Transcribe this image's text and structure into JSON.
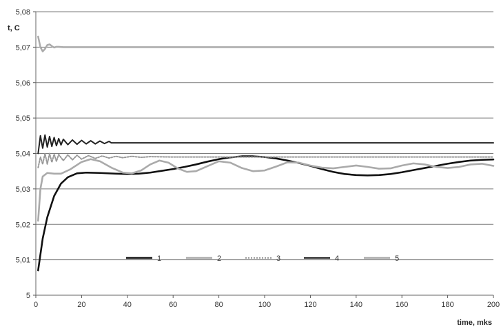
{
  "chart_data": {
    "type": "line",
    "ylabel": "t, C",
    "xlabel": "time, mks",
    "xlim": [
      0,
      200
    ],
    "ylim": [
      5,
      5.08
    ],
    "xticks": [
      "0",
      "20",
      "40",
      "60",
      "80",
      "100",
      "120",
      "140",
      "160",
      "180",
      "200"
    ],
    "yticks": [
      "5",
      "5,01",
      "5,02",
      "5,03",
      "5,04",
      "5,05",
      "5,06",
      "5,07",
      "5,08"
    ],
    "grid": "horizontal",
    "legend": "inside-bottom-center",
    "series": [
      {
        "name": "1",
        "color": "#111111",
        "style": "solid-thick",
        "points": [
          [
            1,
            5.007
          ],
          [
            3,
            5.016
          ],
          [
            5,
            5.022
          ],
          [
            8,
            5.028
          ],
          [
            11,
            5.0315
          ],
          [
            14,
            5.0333
          ],
          [
            18,
            5.0344
          ],
          [
            22,
            5.0346
          ],
          [
            28,
            5.0345
          ],
          [
            35,
            5.0343
          ],
          [
            40,
            5.0342
          ],
          [
            45,
            5.0343
          ],
          [
            50,
            5.0346
          ],
          [
            55,
            5.0351
          ],
          [
            60,
            5.0356
          ],
          [
            65,
            5.0362
          ],
          [
            70,
            5.0369
          ],
          [
            75,
            5.0377
          ],
          [
            80,
            5.0384
          ],
          [
            85,
            5.0389
          ],
          [
            90,
            5.0392
          ],
          [
            95,
            5.0392
          ],
          [
            100,
            5.039
          ],
          [
            105,
            5.0386
          ],
          [
            110,
            5.038
          ],
          [
            115,
            5.0373
          ],
          [
            120,
            5.0365
          ],
          [
            125,
            5.0356
          ],
          [
            130,
            5.0348
          ],
          [
            135,
            5.0342
          ],
          [
            140,
            5.0339
          ],
          [
            145,
            5.0338
          ],
          [
            150,
            5.0339
          ],
          [
            155,
            5.0342
          ],
          [
            160,
            5.0347
          ],
          [
            165,
            5.0353
          ],
          [
            170,
            5.0359
          ],
          [
            175,
            5.0365
          ],
          [
            180,
            5.0371
          ],
          [
            185,
            5.0376
          ],
          [
            190,
            5.038
          ],
          [
            195,
            5.0382
          ],
          [
            200,
            5.0383
          ]
        ]
      },
      {
        "name": "2",
        "color": "#aaaaaa",
        "style": "solid-thick",
        "points": [
          [
            1,
            5.021
          ],
          [
            2,
            5.03
          ],
          [
            3,
            5.0335
          ],
          [
            5,
            5.0345
          ],
          [
            8,
            5.0343
          ],
          [
            11,
            5.0343
          ],
          [
            15,
            5.0355
          ],
          [
            20,
            5.0376
          ],
          [
            24,
            5.0384
          ],
          [
            28,
            5.0378
          ],
          [
            33,
            5.036
          ],
          [
            38,
            5.0346
          ],
          [
            42,
            5.0344
          ],
          [
            46,
            5.0352
          ],
          [
            50,
            5.0369
          ],
          [
            54,
            5.038
          ],
          [
            58,
            5.0374
          ],
          [
            62,
            5.0358
          ],
          [
            66,
            5.0348
          ],
          [
            70,
            5.035
          ],
          [
            75,
            5.0364
          ],
          [
            80,
            5.0378
          ],
          [
            85,
            5.0374
          ],
          [
            90,
            5.0359
          ],
          [
            95,
            5.035
          ],
          [
            100,
            5.0352
          ],
          [
            105,
            5.0363
          ],
          [
            110,
            5.0375
          ],
          [
            115,
            5.0374
          ],
          [
            120,
            5.0366
          ],
          [
            125,
            5.036
          ],
          [
            130,
            5.0358
          ],
          [
            135,
            5.0362
          ],
          [
            140,
            5.0366
          ],
          [
            145,
            5.0362
          ],
          [
            150,
            5.0357
          ],
          [
            155,
            5.0358
          ],
          [
            160,
            5.0366
          ],
          [
            165,
            5.0372
          ],
          [
            170,
            5.0369
          ],
          [
            175,
            5.0362
          ],
          [
            180,
            5.0359
          ],
          [
            185,
            5.0362
          ],
          [
            190,
            5.0369
          ],
          [
            195,
            5.0371
          ],
          [
            200,
            5.0365
          ]
        ]
      },
      {
        "name": "3",
        "color": "#999999",
        "style": "dotted",
        "points": [
          [
            1,
            5.036
          ],
          [
            2,
            5.039
          ],
          [
            3,
            5.037
          ],
          [
            4,
            5.04
          ],
          [
            5,
            5.037
          ],
          [
            6,
            5.04
          ],
          [
            7,
            5.0375
          ],
          [
            8,
            5.0398
          ],
          [
            9,
            5.0378
          ],
          [
            10,
            5.0397
          ],
          [
            12,
            5.038
          ],
          [
            14,
            5.0396
          ],
          [
            16,
            5.0382
          ],
          [
            18,
            5.0395
          ],
          [
            20,
            5.0384
          ],
          [
            23,
            5.0394
          ],
          [
            26,
            5.0386
          ],
          [
            29,
            5.0393
          ],
          [
            32,
            5.0387
          ],
          [
            35,
            5.0392
          ],
          [
            38,
            5.0388
          ],
          [
            42,
            5.0392
          ],
          [
            46,
            5.0389
          ],
          [
            50,
            5.0391
          ],
          [
            60,
            5.039
          ],
          [
            80,
            5.039
          ],
          [
            100,
            5.039
          ],
          [
            120,
            5.039
          ],
          [
            140,
            5.039
          ],
          [
            160,
            5.039
          ],
          [
            180,
            5.039
          ],
          [
            200,
            5.039
          ]
        ]
      },
      {
        "name": "4",
        "color": "#222222",
        "style": "solid-oscillating",
        "points": [
          [
            1,
            5.04
          ],
          [
            2,
            5.045
          ],
          [
            3,
            5.0415
          ],
          [
            4,
            5.0452
          ],
          [
            5,
            5.0418
          ],
          [
            6,
            5.0448
          ],
          [
            7,
            5.042
          ],
          [
            8,
            5.0445
          ],
          [
            9,
            5.0422
          ],
          [
            10,
            5.0442
          ],
          [
            11,
            5.0424
          ],
          [
            12,
            5.044
          ],
          [
            14,
            5.0425
          ],
          [
            16,
            5.0438
          ],
          [
            18,
            5.0426
          ],
          [
            20,
            5.0437
          ],
          [
            22,
            5.0427
          ],
          [
            24,
            5.0436
          ],
          [
            26,
            5.0427
          ],
          [
            28,
            5.0435
          ],
          [
            30,
            5.0428
          ],
          [
            32,
            5.0434
          ],
          [
            33,
            5.043
          ],
          [
            34,
            5.043
          ],
          [
            60,
            5.043
          ],
          [
            100,
            5.043
          ],
          [
            150,
            5.043
          ],
          [
            200,
            5.043
          ]
        ]
      },
      {
        "name": "5",
        "color": "#aaaaaa",
        "style": "solid-oscillating",
        "points": [
          [
            1,
            5.073
          ],
          [
            2,
            5.07
          ],
          [
            3,
            5.0688
          ],
          [
            4,
            5.0695
          ],
          [
            5,
            5.0706
          ],
          [
            6,
            5.0708
          ],
          [
            7,
            5.0703
          ],
          [
            8,
            5.0699
          ],
          [
            9,
            5.0701
          ],
          [
            10,
            5.0701
          ],
          [
            12,
            5.07
          ],
          [
            50,
            5.07
          ],
          [
            100,
            5.07
          ],
          [
            150,
            5.07
          ],
          [
            200,
            5.07
          ]
        ]
      }
    ]
  }
}
